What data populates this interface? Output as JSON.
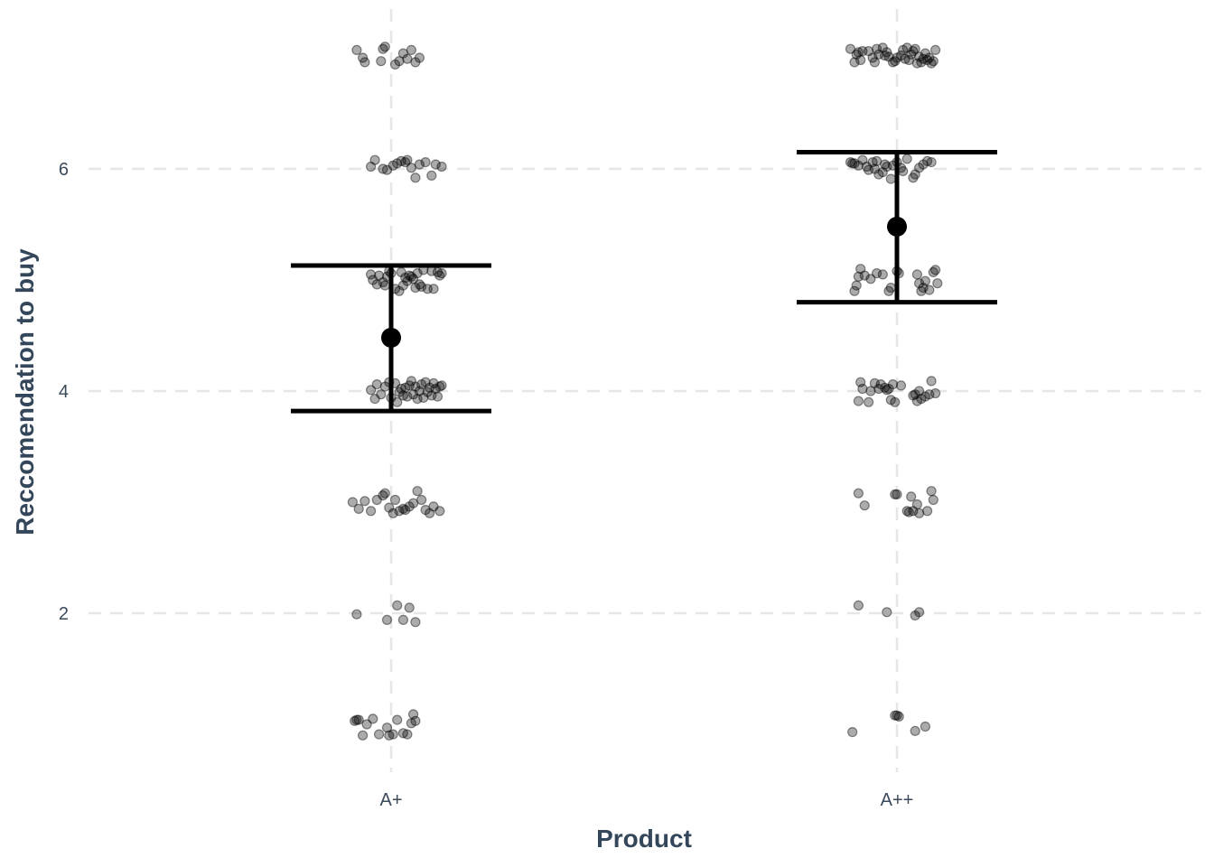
{
  "chart_data": {
    "type": "scatter",
    "xlabel": "Product",
    "ylabel": "Reccomendation to buy",
    "categories": [
      "A+",
      "A++"
    ],
    "yticks": [
      2,
      4,
      6
    ],
    "ylim": [
      0.7,
      7.3
    ],
    "grid": true,
    "summary": [
      {
        "category": "A+",
        "mean": 4.48,
        "lower": 3.82,
        "upper": 5.13
      },
      {
        "category": "A++",
        "mean": 5.48,
        "lower": 4.8,
        "upper": 6.15
      }
    ],
    "points": {
      "A+": [
        {
          "j": -0.17,
          "y": 7.07
        },
        {
          "j": -0.14,
          "y": 7.0
        },
        {
          "j": -0.13,
          "y": 6.96
        },
        {
          "j": -0.05,
          "y": 6.97
        },
        {
          "j": -0.04,
          "y": 7.08
        },
        {
          "j": -0.03,
          "y": 7.1
        },
        {
          "j": 0.02,
          "y": 6.94
        },
        {
          "j": 0.04,
          "y": 6.97
        },
        {
          "j": 0.06,
          "y": 7.04
        },
        {
          "j": 0.08,
          "y": 6.99
        },
        {
          "j": 0.1,
          "y": 7.07
        },
        {
          "j": 0.12,
          "y": 6.96
        },
        {
          "j": 0.14,
          "y": 7.0
        },
        {
          "j": -0.1,
          "y": 6.02
        },
        {
          "j": -0.08,
          "y": 6.08
        },
        {
          "j": -0.04,
          "y": 6.0
        },
        {
          "j": -0.02,
          "y": 5.99
        },
        {
          "j": 0.01,
          "y": 6.03
        },
        {
          "j": 0.03,
          "y": 6.05
        },
        {
          "j": 0.05,
          "y": 6.07
        },
        {
          "j": 0.07,
          "y": 6.06
        },
        {
          "j": 0.08,
          "y": 6.08
        },
        {
          "j": 0.1,
          "y": 6.01
        },
        {
          "j": 0.12,
          "y": 5.92
        },
        {
          "j": 0.14,
          "y": 6.04
        },
        {
          "j": 0.17,
          "y": 6.06
        },
        {
          "j": 0.2,
          "y": 5.94
        },
        {
          "j": 0.22,
          "y": 6.04
        },
        {
          "j": 0.25,
          "y": 6.02
        },
        {
          "j": -0.1,
          "y": 5.05
        },
        {
          "j": -0.09,
          "y": 5.0
        },
        {
          "j": -0.07,
          "y": 4.96
        },
        {
          "j": -0.06,
          "y": 5.04
        },
        {
          "j": -0.04,
          "y": 4.98
        },
        {
          "j": -0.03,
          "y": 4.95
        },
        {
          "j": -0.01,
          "y": 5.08
        },
        {
          "j": 0.0,
          "y": 5.06
        },
        {
          "j": 0.02,
          "y": 4.92
        },
        {
          "j": 0.04,
          "y": 4.9
        },
        {
          "j": 0.05,
          "y": 5.07
        },
        {
          "j": 0.06,
          "y": 4.95
        },
        {
          "j": 0.07,
          "y": 5.02
        },
        {
          "j": 0.08,
          "y": 4.99
        },
        {
          "j": 0.09,
          "y": 5.04
        },
        {
          "j": 0.1,
          "y": 5.03
        },
        {
          "j": 0.11,
          "y": 5.01
        },
        {
          "j": 0.12,
          "y": 4.93
        },
        {
          "j": 0.13,
          "y": 5.06
        },
        {
          "j": 0.14,
          "y": 4.96
        },
        {
          "j": 0.16,
          "y": 5.09
        },
        {
          "j": 0.18,
          "y": 4.92
        },
        {
          "j": 0.2,
          "y": 5.08
        },
        {
          "j": 0.21,
          "y": 4.92
        },
        {
          "j": 0.23,
          "y": 5.07
        },
        {
          "j": 0.24,
          "y": 5.04
        },
        {
          "j": 0.25,
          "y": 5.06
        },
        {
          "j": -0.02,
          "y": 5.03
        },
        {
          "j": 0.15,
          "y": 4.94
        },
        {
          "j": -0.1,
          "y": 4.01
        },
        {
          "j": -0.08,
          "y": 3.93
        },
        {
          "j": -0.07,
          "y": 4.06
        },
        {
          "j": -0.05,
          "y": 3.97
        },
        {
          "j": -0.03,
          "y": 4.04
        },
        {
          "j": -0.01,
          "y": 4.08
        },
        {
          "j": 0.0,
          "y": 3.94
        },
        {
          "j": 0.02,
          "y": 4.07
        },
        {
          "j": 0.03,
          "y": 3.9
        },
        {
          "j": 0.04,
          "y": 3.99
        },
        {
          "j": 0.05,
          "y": 4.02
        },
        {
          "j": 0.06,
          "y": 3.96
        },
        {
          "j": 0.07,
          "y": 4.03
        },
        {
          "j": 0.08,
          "y": 3.95
        },
        {
          "j": 0.09,
          "y": 4.05
        },
        {
          "j": 0.1,
          "y": 4.09
        },
        {
          "j": 0.11,
          "y": 3.97
        },
        {
          "j": 0.12,
          "y": 4.04
        },
        {
          "j": 0.13,
          "y": 3.93
        },
        {
          "j": 0.14,
          "y": 4.0
        },
        {
          "j": 0.15,
          "y": 4.06
        },
        {
          "j": 0.16,
          "y": 3.94
        },
        {
          "j": 0.17,
          "y": 4.08
        },
        {
          "j": 0.18,
          "y": 3.99
        },
        {
          "j": 0.19,
          "y": 4.03
        },
        {
          "j": 0.2,
          "y": 3.96
        },
        {
          "j": 0.21,
          "y": 4.07
        },
        {
          "j": 0.22,
          "y": 4.02
        },
        {
          "j": 0.23,
          "y": 3.95
        },
        {
          "j": 0.24,
          "y": 4.04
        },
        {
          "j": 0.25,
          "y": 4.05
        },
        {
          "j": -0.19,
          "y": 3.0
        },
        {
          "j": -0.16,
          "y": 2.94
        },
        {
          "j": -0.13,
          "y": 3.01
        },
        {
          "j": -0.1,
          "y": 2.92
        },
        {
          "j": -0.07,
          "y": 3.02
        },
        {
          "j": -0.04,
          "y": 3.06
        },
        {
          "j": -0.03,
          "y": 3.08
        },
        {
          "j": -0.01,
          "y": 2.95
        },
        {
          "j": 0.01,
          "y": 2.9
        },
        {
          "j": 0.02,
          "y": 3.02
        },
        {
          "j": 0.04,
          "y": 2.92
        },
        {
          "j": 0.06,
          "y": 2.94
        },
        {
          "j": 0.07,
          "y": 2.93
        },
        {
          "j": 0.09,
          "y": 2.96
        },
        {
          "j": 0.11,
          "y": 2.99
        },
        {
          "j": 0.13,
          "y": 3.1
        },
        {
          "j": 0.15,
          "y": 3.02
        },
        {
          "j": 0.17,
          "y": 2.93
        },
        {
          "j": 0.19,
          "y": 2.9
        },
        {
          "j": 0.21,
          "y": 2.96
        },
        {
          "j": 0.24,
          "y": 2.92
        },
        {
          "j": -0.17,
          "y": 1.99
        },
        {
          "j": -0.02,
          "y": 1.94
        },
        {
          "j": 0.03,
          "y": 2.07
        },
        {
          "j": 0.06,
          "y": 1.94
        },
        {
          "j": 0.09,
          "y": 2.05
        },
        {
          "j": 0.12,
          "y": 1.92
        },
        {
          "j": -0.18,
          "y": 1.03
        },
        {
          "j": -0.17,
          "y": 1.04
        },
        {
          "j": -0.16,
          "y": 1.04
        },
        {
          "j": -0.14,
          "y": 0.9
        },
        {
          "j": -0.12,
          "y": 1.0
        },
        {
          "j": -0.09,
          "y": 1.05
        },
        {
          "j": -0.06,
          "y": 0.91
        },
        {
          "j": -0.02,
          "y": 0.97
        },
        {
          "j": -0.01,
          "y": 0.9
        },
        {
          "j": 0.01,
          "y": 0.91
        },
        {
          "j": 0.03,
          "y": 1.04
        },
        {
          "j": 0.06,
          "y": 0.92
        },
        {
          "j": 0.08,
          "y": 0.91
        },
        {
          "j": 0.1,
          "y": 1.01
        },
        {
          "j": 0.11,
          "y": 1.09
        },
        {
          "j": 0.12,
          "y": 1.03
        }
      ],
      "A++": [
        {
          "j": -0.23,
          "y": 7.08
        },
        {
          "j": -0.21,
          "y": 6.96
        },
        {
          "j": -0.2,
          "y": 7.03
        },
        {
          "j": -0.19,
          "y": 7.05
        },
        {
          "j": -0.18,
          "y": 6.98
        },
        {
          "j": -0.17,
          "y": 7.06
        },
        {
          "j": -0.14,
          "y": 7.06
        },
        {
          "j": -0.12,
          "y": 7.0
        },
        {
          "j": -0.11,
          "y": 6.96
        },
        {
          "j": -0.1,
          "y": 7.08
        },
        {
          "j": -0.09,
          "y": 7.03
        },
        {
          "j": -0.07,
          "y": 7.09
        },
        {
          "j": -0.06,
          "y": 7.02
        },
        {
          "j": -0.05,
          "y": 7.05
        },
        {
          "j": -0.04,
          "y": 7.01
        },
        {
          "j": -0.02,
          "y": 6.96
        },
        {
          "j": 0.0,
          "y": 7.0
        },
        {
          "j": 0.02,
          "y": 7.02
        },
        {
          "j": 0.03,
          "y": 7.07
        },
        {
          "j": 0.05,
          "y": 7.09
        },
        {
          "j": 0.06,
          "y": 6.98
        },
        {
          "j": 0.07,
          "y": 7.03
        },
        {
          "j": 0.08,
          "y": 7.06
        },
        {
          "j": 0.09,
          "y": 7.08
        },
        {
          "j": 0.1,
          "y": 6.95
        },
        {
          "j": 0.11,
          "y": 7.01
        },
        {
          "j": 0.12,
          "y": 6.96
        },
        {
          "j": 0.13,
          "y": 6.99
        },
        {
          "j": 0.14,
          "y": 7.04
        },
        {
          "j": 0.15,
          "y": 6.98
        },
        {
          "j": 0.16,
          "y": 7.0
        },
        {
          "j": 0.17,
          "y": 6.95
        },
        {
          "j": 0.18,
          "y": 6.97
        },
        {
          "j": 0.19,
          "y": 7.07
        },
        {
          "j": -0.01,
          "y": 6.97
        },
        {
          "j": 0.04,
          "y": 6.99
        },
        {
          "j": -0.23,
          "y": 6.06
        },
        {
          "j": -0.22,
          "y": 6.05
        },
        {
          "j": -0.21,
          "y": 6.05
        },
        {
          "j": -0.19,
          "y": 6.03
        },
        {
          "j": -0.17,
          "y": 6.08
        },
        {
          "j": -0.15,
          "y": 6.02
        },
        {
          "j": -0.14,
          "y": 5.99
        },
        {
          "j": -0.12,
          "y": 6.06
        },
        {
          "j": -0.11,
          "y": 6.0
        },
        {
          "j": -0.1,
          "y": 6.07
        },
        {
          "j": -0.09,
          "y": 5.95
        },
        {
          "j": -0.07,
          "y": 5.97
        },
        {
          "j": -0.06,
          "y": 6.04
        },
        {
          "j": -0.05,
          "y": 6.02
        },
        {
          "j": -0.03,
          "y": 5.91
        },
        {
          "j": -0.02,
          "y": 6.03
        },
        {
          "j": 0.0,
          "y": 6.06
        },
        {
          "j": 0.02,
          "y": 6.01
        },
        {
          "j": 0.03,
          "y": 5.98
        },
        {
          "j": 0.05,
          "y": 6.09
        },
        {
          "j": 0.08,
          "y": 5.92
        },
        {
          "j": 0.09,
          "y": 5.95
        },
        {
          "j": 0.11,
          "y": 6.01
        },
        {
          "j": 0.13,
          "y": 6.04
        },
        {
          "j": 0.15,
          "y": 6.07
        },
        {
          "j": 0.17,
          "y": 6.06
        },
        {
          "j": -0.21,
          "y": 4.9
        },
        {
          "j": -0.2,
          "y": 4.95
        },
        {
          "j": -0.19,
          "y": 5.03
        },
        {
          "j": -0.18,
          "y": 5.1
        },
        {
          "j": -0.16,
          "y": 5.04
        },
        {
          "j": -0.13,
          "y": 5.01
        },
        {
          "j": -0.1,
          "y": 5.06
        },
        {
          "j": -0.07,
          "y": 5.05
        },
        {
          "j": -0.04,
          "y": 4.9
        },
        {
          "j": -0.03,
          "y": 4.93
        },
        {
          "j": 0.0,
          "y": 5.08
        },
        {
          "j": 0.01,
          "y": 5.06
        },
        {
          "j": 0.1,
          "y": 5.05
        },
        {
          "j": 0.11,
          "y": 4.97
        },
        {
          "j": 0.12,
          "y": 4.9
        },
        {
          "j": 0.13,
          "y": 4.93
        },
        {
          "j": 0.14,
          "y": 4.99
        },
        {
          "j": 0.16,
          "y": 4.91
        },
        {
          "j": 0.18,
          "y": 5.07
        },
        {
          "j": 0.19,
          "y": 5.09
        },
        {
          "j": 0.2,
          "y": 4.97
        },
        {
          "j": -0.19,
          "y": 3.91
        },
        {
          "j": -0.18,
          "y": 4.08
        },
        {
          "j": -0.17,
          "y": 4.02
        },
        {
          "j": -0.14,
          "y": 3.9
        },
        {
          "j": -0.13,
          "y": 4.0
        },
        {
          "j": -0.11,
          "y": 4.07
        },
        {
          "j": -0.09,
          "y": 4.02
        },
        {
          "j": -0.08,
          "y": 4.06
        },
        {
          "j": -0.06,
          "y": 4.03
        },
        {
          "j": -0.05,
          "y": 4.01
        },
        {
          "j": -0.04,
          "y": 4.02
        },
        {
          "j": -0.03,
          "y": 3.92
        },
        {
          "j": -0.02,
          "y": 4.06
        },
        {
          "j": -0.01,
          "y": 3.9
        },
        {
          "j": 0.02,
          "y": 4.05
        },
        {
          "j": 0.08,
          "y": 3.96
        },
        {
          "j": 0.09,
          "y": 3.97
        },
        {
          "j": 0.1,
          "y": 3.91
        },
        {
          "j": 0.11,
          "y": 4.0
        },
        {
          "j": 0.12,
          "y": 3.93
        },
        {
          "j": 0.14,
          "y": 3.95
        },
        {
          "j": 0.16,
          "y": 3.97
        },
        {
          "j": 0.17,
          "y": 4.09
        },
        {
          "j": 0.19,
          "y": 3.98
        },
        {
          "j": -0.19,
          "y": 3.08
        },
        {
          "j": -0.16,
          "y": 2.97
        },
        {
          "j": -0.01,
          "y": 3.07
        },
        {
          "j": 0.0,
          "y": 3.07
        },
        {
          "j": 0.05,
          "y": 2.92
        },
        {
          "j": 0.06,
          "y": 2.91
        },
        {
          "j": 0.07,
          "y": 3.05
        },
        {
          "j": 0.08,
          "y": 2.92
        },
        {
          "j": 0.1,
          "y": 2.98
        },
        {
          "j": 0.11,
          "y": 2.9
        },
        {
          "j": 0.15,
          "y": 2.92
        },
        {
          "j": 0.17,
          "y": 3.1
        },
        {
          "j": 0.18,
          "y": 3.02
        },
        {
          "j": -0.19,
          "y": 2.07
        },
        {
          "j": -0.05,
          "y": 2.01
        },
        {
          "j": 0.09,
          "y": 1.98
        },
        {
          "j": 0.11,
          "y": 2.01
        },
        {
          "j": -0.22,
          "y": 0.93
        },
        {
          "j": -0.01,
          "y": 1.08
        },
        {
          "j": 0.0,
          "y": 1.08
        },
        {
          "j": 0.01,
          "y": 1.07
        },
        {
          "j": 0.09,
          "y": 0.94
        },
        {
          "j": 0.14,
          "y": 0.98
        }
      ]
    }
  }
}
